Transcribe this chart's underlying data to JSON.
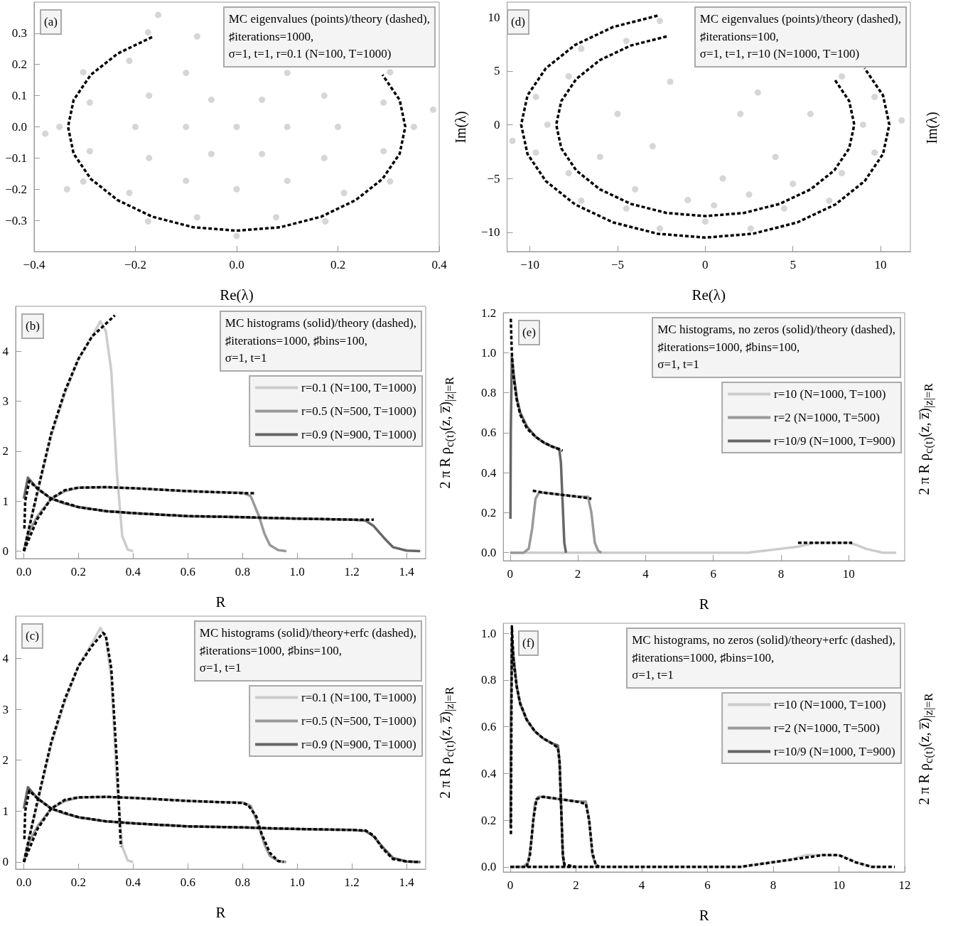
{
  "chart_data": [
    {
      "type": "scatter",
      "xlabel": "Re(λ)",
      "ylabel": "Im(λ)",
      "annotations": [
        "(a)",
        "MC eigenvalues (points)/theory (dashed),",
        "♯iterations=1000,",
        "σ=1, t=1, r=0.1 (N=100, T=1000)"
      ],
      "xlim": [
        -0.4,
        0.4
      ],
      "ylim": [
        -0.4,
        0.4
      ],
      "xticks": [
        {
          "value": -0.4,
          "label": "−0.4"
        },
        {
          "value": -0.2,
          "label": "−0.2"
        },
        {
          "value": 0,
          "label": "0.0"
        },
        0.2,
        0.4
      ],
      "yticks": [
        {
          "value": -0.3,
          "label": "−0.3"
        },
        {
          "value": -0.2,
          "label": "−0.2"
        },
        {
          "value": -0.1,
          "label": "−0.1"
        },
        {
          "value": 0,
          "label": "0.0"
        },
        0.1,
        0.2,
        0.3
      ],
      "series": [
        {
          "color": "#cccccc",
          "marker": "circle",
          "x": [
            0,
            0.1,
            0.05,
            -0.05,
            -0.1,
            -0.05,
            0.05,
            0.2,
            0.173,
            0.1,
            -0.1,
            -0.173,
            -0.2,
            -0.173,
            -0.1,
            0,
            0.1,
            0.173,
            0.29,
            -0.078,
            -0.212,
            -0.29,
            -0.29,
            -0.212,
            -0.078,
            0.078,
            0.212,
            0.29,
            0.35,
            0.303,
            -0.175,
            -0.303,
            -0.35,
            -0.303,
            -0.175,
            0,
            0.175,
            0.303,
            0.388,
            -0.378,
            -0.335,
            -0.155
          ],
          "values": [
            0,
            0,
            0.087,
            0.087,
            0,
            -0.087,
            -0.087,
            0,
            0.1,
            0.173,
            0.173,
            0.1,
            0,
            -0.1,
            -0.173,
            -0.2,
            -0.173,
            -0.1,
            0.078,
            0.29,
            0.212,
            0.078,
            -0.078,
            -0.212,
            -0.29,
            -0.29,
            -0.212,
            -0.078,
            0,
            0.175,
            0.303,
            0.175,
            0,
            -0.175,
            -0.303,
            -0.35,
            -0.303,
            -0.175,
            0.055,
            -0.022,
            -0.2,
            0.359
          ]
        },
        {
          "type": "line",
          "color": "#000000",
          "line_style": "dashed",
          "x": [
            -0.167,
            -0.235,
            -0.288,
            -0.322,
            -0.333,
            -0.322,
            -0.288,
            -0.235,
            -0.167,
            -0.086,
            0,
            0.086,
            0.167,
            0.235,
            0.288,
            0.322,
            0.333,
            0.322,
            0.288
          ],
          "values": [
            0.288,
            0.235,
            0.167,
            0.086,
            0,
            -0.086,
            -0.167,
            -0.235,
            -0.288,
            -0.322,
            -0.333,
            -0.322,
            -0.288,
            -0.235,
            -0.167,
            -0.086,
            0,
            0.086,
            0.167
          ]
        }
      ]
    },
    {
      "type": "scatter",
      "xlabel": "Re(λ)",
      "ylabel": "Im(λ)",
      "annotations": [
        "(d)",
        "MC eigenvalues (points)/theory (dashed),",
        "♯iterations=100,",
        "σ=1, t=1, r=10 (N=1000, T=100)"
      ],
      "xlim": [
        -11.3,
        11.7
      ],
      "ylim": [
        -11.8,
        11.4
      ],
      "xticks": [
        {
          "value": -10,
          "label": "−10"
        },
        {
          "value": -5,
          "label": "−5"
        },
        0,
        5,
        10
      ],
      "yticks": [
        {
          "value": -10,
          "label": "−10"
        },
        {
          "value": -5,
          "label": "−5"
        },
        0,
        5,
        10
      ],
      "series": [
        {
          "color": "#cccccc",
          "marker": "circle",
          "x": [
            9,
            7.79,
            -4.5,
            -7.79,
            -9,
            -7.79,
            -4.5,
            0,
            4.5,
            7.79,
            9.66,
            -2.59,
            -7.07,
            -9.66,
            -9.66,
            -7.07,
            -2.59,
            2.59,
            7.07,
            9.66,
            2,
            -3,
            1,
            -5,
            4,
            -2,
            3,
            -1,
            0.5,
            -4,
            5,
            6,
            -6,
            2.5,
            11.2,
            -11
          ],
          "values": [
            0,
            4.5,
            7.79,
            4.5,
            0,
            -4.5,
            -7.79,
            -9,
            -7.79,
            -4.5,
            2.59,
            9.66,
            7.07,
            2.59,
            -2.59,
            -7.07,
            -9.66,
            -9.66,
            -7.07,
            -2.59,
            1,
            -2,
            -5,
            1,
            -3,
            4,
            3,
            -7,
            -7.5,
            -6,
            -5.5,
            1,
            -3,
            -6.5,
            0.4,
            -1.5
          ]
        },
        {
          "type": "line",
          "color": "#000000",
          "line_style": "dashed",
          "x": [
            -2.72,
            -5.25,
            -7.42,
            -9.09,
            -10.14,
            -10.5,
            -10.14,
            -9.09,
            -7.42,
            -5.25,
            -2.72,
            0,
            2.72,
            5.25,
            7.42,
            9.09,
            10.14,
            10.5,
            10.14,
            9.09
          ],
          "values": [
            10.14,
            9.09,
            7.42,
            5.25,
            2.72,
            0,
            -2.72,
            -5.25,
            -7.42,
            -9.09,
            -10.14,
            -10.5,
            -10.14,
            -9.09,
            -7.42,
            -5.25,
            -2.72,
            0,
            2.72,
            5.25
          ]
        },
        {
          "type": "line",
          "color": "#000000",
          "line_style": "dashed",
          "x": [
            -2.2,
            -4.25,
            -6.01,
            -7.36,
            -8.21,
            -8.5,
            -8.21,
            -7.36,
            -6.01,
            -4.25,
            -2.2,
            0,
            2.2,
            4.25,
            6.01,
            7.36,
            8.21,
            8.5,
            8.21,
            7.36
          ],
          "values": [
            8.21,
            7.36,
            6.01,
            4.25,
            2.2,
            0,
            -2.2,
            -4.25,
            -6.01,
            -7.36,
            -8.21,
            -8.5,
            -8.21,
            -7.36,
            -6.01,
            -4.25,
            -2.2,
            0,
            2.2,
            4.25
          ]
        }
      ]
    },
    {
      "type": "line",
      "xlabel": "R",
      "ylabel": "2 π R ρ$_{c(t)}$(z, z̅)$_{|z|=R}$",
      "annotations": [
        "(b)",
        "MC histograms (solid)/theory (dashed),",
        "♯iterations=1000, ♯bins=100,",
        "σ=1, t=1"
      ],
      "legend": "top right",
      "xlim": [
        -0.03,
        1.47
      ],
      "ylim": [
        -0.15,
        4.9
      ],
      "xticks": [
        {
          "value": 0,
          "label": "0.0"
        },
        0.2,
        0.4,
        0.6,
        0.8,
        {
          "value": 1,
          "label": "1.0"
        },
        1.2,
        1.4
      ],
      "yticks": [
        0,
        1,
        2,
        3,
        4
      ],
      "series": [
        {
          "name": "r=0.1 (N=100, T=1000)",
          "color": "#cccccc",
          "x": [
            0,
            0.02,
            0.05,
            0.08,
            0.1,
            0.15,
            0.2,
            0.25,
            0.28,
            0.3,
            0.32,
            0.34,
            0.36,
            0.38,
            0.4
          ],
          "values": [
            0,
            0.5,
            1.15,
            1.85,
            2.3,
            3.15,
            3.85,
            4.3,
            4.6,
            4.4,
            3.6,
            1.6,
            0.3,
            0.03,
            0
          ]
        },
        {
          "name": "r=0.5 (N=500, T=1000)",
          "color": "#999999",
          "x": [
            0,
            0.02,
            0.05,
            0.1,
            0.15,
            0.2,
            0.3,
            0.4,
            0.5,
            0.6,
            0.7,
            0.8,
            0.83,
            0.86,
            0.88,
            0.9,
            0.93,
            0.96
          ],
          "values": [
            0,
            0.4,
            0.7,
            1.05,
            1.2,
            1.27,
            1.28,
            1.26,
            1.23,
            1.2,
            1.18,
            1.17,
            1.1,
            0.7,
            0.35,
            0.12,
            0.02,
            0
          ]
        },
        {
          "name": "r=0.9 (N=900, T=1000)",
          "color": "#666666",
          "x": [
            0,
            0.015,
            0.05,
            0.1,
            0.15,
            0.2,
            0.3,
            0.4,
            0.5,
            0.6,
            0.7,
            0.8,
            0.9,
            1.0,
            1.1,
            1.2,
            1.25,
            1.28,
            1.32,
            1.35,
            1.4,
            1.45
          ],
          "values": [
            1.05,
            1.47,
            1.25,
            1.05,
            0.95,
            0.88,
            0.8,
            0.76,
            0.73,
            0.7,
            0.69,
            0.68,
            0.66,
            0.65,
            0.64,
            0.63,
            0.61,
            0.5,
            0.25,
            0.08,
            0.01,
            0
          ]
        },
        {
          "color": "#000000",
          "line_style": "dashed",
          "x": [
            0,
            0.05,
            0.1,
            0.15,
            0.2,
            0.25,
            0.3,
            0.333
          ],
          "values": [
            0,
            1.2,
            2.35,
            3.2,
            3.85,
            4.3,
            4.55,
            4.72
          ]
        },
        {
          "color": "#000000",
          "line_style": "dashed",
          "x": [
            0,
            0.05,
            0.1,
            0.15,
            0.2,
            0.3,
            0.4,
            0.5,
            0.6,
            0.7,
            0.8,
            0.845
          ],
          "values": [
            0,
            0.65,
            1.05,
            1.22,
            1.27,
            1.28,
            1.26,
            1.23,
            1.2,
            1.18,
            1.16,
            1.16
          ]
        },
        {
          "color": "#000000",
          "line_style": "dashed",
          "x": [
            0.002,
            0.005,
            0.02,
            0.05,
            0.1,
            0.2,
            0.3,
            0.4,
            0.5,
            0.6,
            0.8,
            1.0,
            1.2,
            1.28
          ],
          "values": [
            0.45,
            1.0,
            1.4,
            1.25,
            1.05,
            0.88,
            0.8,
            0.76,
            0.73,
            0.7,
            0.68,
            0.65,
            0.63,
            0.63
          ]
        }
      ]
    },
    {
      "type": "line",
      "xlabel": "R",
      "ylabel": "2 π R ρ$_{c(t)}$(z, z̅)$_{|z|=R}$",
      "annotations": [
        "(e)",
        "MC histograms, no zeros (solid)/theory (dashed),",
        "♯iterations=1000, ♯bins=100,",
        "σ=1, t=1"
      ],
      "legend": "top right",
      "xlim": [
        -0.2,
        11.65
      ],
      "ylim": [
        -0.04,
        1.2
      ],
      "xticks": [
        0,
        2,
        4,
        6,
        8,
        10
      ],
      "yticks": [
        {
          "value": 0,
          "label": "0.0"
        },
        0.2,
        0.4,
        0.6,
        0.8,
        {
          "value": 1,
          "label": "1.0"
        },
        1.2
      ],
      "series": [
        {
          "name": "r=10 (N=1000, T=100)",
          "color": "#cccccc",
          "x": [
            0,
            2,
            4,
            6,
            7,
            7.5,
            8,
            8.5,
            9,
            9.5,
            10,
            10.2,
            10.5,
            11,
            11.4
          ],
          "values": [
            0,
            0,
            0,
            0,
            0,
            0.01,
            0.02,
            0.03,
            0.05,
            0.05,
            0.05,
            0.04,
            0.02,
            0,
            0
          ]
        },
        {
          "name": "r=2 (N=1000, T=500)",
          "color": "#999999",
          "x": [
            0,
            0.4,
            0.55,
            0.65,
            0.75,
            0.85,
            1.0,
            1.5,
            2.0,
            2.3,
            2.4,
            2.5,
            2.6,
            2.7
          ],
          "values": [
            0,
            0,
            0.02,
            0.12,
            0.27,
            0.3,
            0.3,
            0.29,
            0.28,
            0.28,
            0.2,
            0.05,
            0.01,
            0
          ]
        },
        {
          "name": "r=10/9 (N=1000, T=900)",
          "color": "#666666",
          "x": [
            0.01,
            0.02,
            0.05,
            0.1,
            0.2,
            0.3,
            0.5,
            0.75,
            1.0,
            1.25,
            1.45,
            1.5,
            1.55,
            1.6,
            1.65
          ],
          "values": [
            0.17,
            0.6,
            0.98,
            0.9,
            0.77,
            0.7,
            0.63,
            0.58,
            0.55,
            0.53,
            0.52,
            0.45,
            0.25,
            0.05,
            0
          ]
        },
        {
          "color": "#000000",
          "line_style": "dashed",
          "x": [
            8.5,
            10.1
          ],
          "values": [
            0.05,
            0.05
          ]
        },
        {
          "color": "#000000",
          "line_style": "dashed",
          "x": [
            0.67,
            1,
            1.5,
            2,
            2.4
          ],
          "values": [
            0.31,
            0.3,
            0.29,
            0.28,
            0.27
          ]
        },
        {
          "color": "#000000",
          "line_style": "dashed",
          "x": [
            0.02,
            0.05,
            0.1,
            0.2,
            0.3,
            0.5,
            0.75,
            1.0,
            1.25,
            1.55
          ],
          "values": [
            1.17,
            1.0,
            0.88,
            0.76,
            0.69,
            0.62,
            0.58,
            0.55,
            0.53,
            0.51
          ]
        }
      ]
    },
    {
      "type": "line",
      "xlabel": "R",
      "ylabel": "2 π R ρ$_{c(t)}$(z, z̅)$_{|z|=R}$",
      "annotations": [
        "(c)",
        "MC histograms (solid)/theory+erfc (dashed),",
        "♯iterations=1000, ♯bins=100,",
        "σ=1, t=1"
      ],
      "legend": "top right",
      "xlim": [
        -0.03,
        1.47
      ],
      "ylim": [
        -0.14,
        4.83
      ],
      "xticks": [
        {
          "value": 0,
          "label": "0.0"
        },
        0.2,
        0.4,
        0.6,
        0.8,
        {
          "value": 1,
          "label": "1.0"
        },
        1.2,
        1.4
      ],
      "yticks": [
        0,
        1,
        2,
        3,
        4
      ],
      "series": [
        {
          "name": "r=0.1 (N=100, T=1000)",
          "color": "#cccccc",
          "x": [
            0,
            0.02,
            0.05,
            0.08,
            0.1,
            0.15,
            0.2,
            0.25,
            0.28,
            0.3,
            0.32,
            0.34,
            0.36,
            0.38,
            0.4
          ],
          "values": [
            0,
            0.5,
            1.15,
            1.85,
            2.3,
            3.15,
            3.85,
            4.3,
            4.6,
            4.4,
            3.6,
            1.6,
            0.3,
            0.03,
            0
          ]
        },
        {
          "name": "r=0.5 (N=500, T=1000)",
          "color": "#999999",
          "x": [
            0,
            0.02,
            0.05,
            0.1,
            0.15,
            0.2,
            0.3,
            0.4,
            0.5,
            0.6,
            0.7,
            0.8,
            0.83,
            0.86,
            0.88,
            0.9,
            0.93,
            0.96
          ],
          "values": [
            0,
            0.4,
            0.7,
            1.05,
            1.2,
            1.27,
            1.28,
            1.26,
            1.23,
            1.2,
            1.18,
            1.17,
            1.1,
            0.7,
            0.35,
            0.12,
            0.02,
            0
          ]
        },
        {
          "name": "r=0.9 (N=900, T=1000)",
          "color": "#666666",
          "x": [
            0,
            0.015,
            0.05,
            0.1,
            0.15,
            0.2,
            0.3,
            0.4,
            0.5,
            0.6,
            0.7,
            0.8,
            0.9,
            1.0,
            1.1,
            1.2,
            1.25,
            1.28,
            1.32,
            1.35,
            1.4,
            1.45
          ],
          "values": [
            1.05,
            1.47,
            1.25,
            1.05,
            0.95,
            0.88,
            0.8,
            0.76,
            0.73,
            0.7,
            0.69,
            0.68,
            0.66,
            0.65,
            0.64,
            0.63,
            0.61,
            0.5,
            0.25,
            0.08,
            0.01,
            0
          ]
        },
        {
          "color": "#000000",
          "line_style": "dashed",
          "x": [
            0,
            0.05,
            0.1,
            0.15,
            0.2,
            0.25,
            0.29,
            0.3,
            0.32,
            0.34,
            0.355
          ],
          "values": [
            0,
            1.2,
            2.35,
            3.2,
            3.85,
            4.25,
            4.5,
            4.45,
            3.8,
            2.0,
            0.3
          ]
        },
        {
          "color": "#000000",
          "line_style": "dashed",
          "x": [
            0,
            0.05,
            0.1,
            0.15,
            0.2,
            0.3,
            0.4,
            0.5,
            0.6,
            0.7,
            0.8,
            0.82,
            0.85,
            0.87,
            0.9,
            0.93,
            0.95
          ],
          "values": [
            0,
            0.65,
            1.05,
            1.22,
            1.27,
            1.28,
            1.26,
            1.23,
            1.2,
            1.18,
            1.16,
            1.12,
            0.9,
            0.55,
            0.18,
            0.02,
            0
          ]
        },
        {
          "color": "#000000",
          "line_style": "dashed",
          "x": [
            0.002,
            0.005,
            0.02,
            0.05,
            0.1,
            0.2,
            0.3,
            0.4,
            0.5,
            0.6,
            0.8,
            1.0,
            1.2,
            1.25,
            1.28,
            1.31,
            1.35,
            1.4,
            1.45
          ],
          "values": [
            0.45,
            1.0,
            1.4,
            1.25,
            1.05,
            0.88,
            0.8,
            0.76,
            0.73,
            0.7,
            0.68,
            0.65,
            0.63,
            0.62,
            0.52,
            0.28,
            0.06,
            0.01,
            0
          ]
        }
      ]
    },
    {
      "type": "line",
      "xlabel": "R",
      "ylabel": "2 π R ρ$_{c(t)}$(z, z̅)$_{|z|=R}$",
      "annotations": [
        "(f)",
        "MC histograms, no zeros (solid)/theory+erfc (dashed),",
        "♯iterations=1000, ♯bins=100,",
        "σ=1, t=1"
      ],
      "legend": "top right",
      "xlim": [
        -0.21,
        12
      ],
      "ylim": [
        -0.022,
        1.043
      ],
      "xticks": [
        0,
        2,
        4,
        6,
        8,
        10,
        12
      ],
      "yticks": [
        {
          "value": 0,
          "label": "0.0"
        },
        0.2,
        0.4,
        0.6,
        0.8,
        {
          "value": 1,
          "label": "1.0"
        }
      ],
      "series": [
        {
          "name": "r=10 (N=1000, T=100)",
          "color": "#cccccc",
          "x": [
            0,
            2,
            4,
            6,
            7,
            7.5,
            8,
            8.5,
            9,
            9.5,
            10,
            10.2,
            10.5,
            11,
            11.4
          ],
          "values": [
            0,
            0,
            0,
            0,
            0,
            0.01,
            0.02,
            0.03,
            0.05,
            0.05,
            0.05,
            0.04,
            0.02,
            0,
            0
          ]
        },
        {
          "name": "r=2 (N=1000, T=500)",
          "color": "#999999",
          "x": [
            0,
            0.4,
            0.55,
            0.65,
            0.75,
            0.85,
            1.0,
            1.5,
            2.0,
            2.3,
            2.4,
            2.5,
            2.6,
            2.7
          ],
          "values": [
            0,
            0,
            0.02,
            0.12,
            0.27,
            0.3,
            0.3,
            0.29,
            0.28,
            0.28,
            0.2,
            0.05,
            0.01,
            0
          ]
        },
        {
          "name": "r=10/9 (N=1000, T=900)",
          "color": "#666666",
          "x": [
            0.01,
            0.02,
            0.05,
            0.1,
            0.2,
            0.3,
            0.5,
            0.75,
            1.0,
            1.25,
            1.45,
            1.5,
            1.55,
            1.6,
            1.65
          ],
          "values": [
            0.17,
            0.6,
            0.98,
            0.9,
            0.77,
            0.7,
            0.63,
            0.58,
            0.55,
            0.53,
            0.52,
            0.45,
            0.25,
            0.05,
            0
          ]
        },
        {
          "color": "#000000",
          "line_style": "dashed",
          "x": [
            0,
            2,
            4,
            6,
            7,
            8,
            8.5,
            9,
            9.5,
            10,
            10.5,
            11,
            11.7
          ],
          "values": [
            0,
            0,
            0,
            0,
            0,
            0.02,
            0.03,
            0.04,
            0.05,
            0.05,
            0.02,
            0,
            0
          ]
        },
        {
          "color": "#000000",
          "line_style": "dashed",
          "x": [
            0.5,
            0.6,
            0.7,
            0.8,
            1,
            1.5,
            2,
            2.3,
            2.4,
            2.5,
            2.6,
            2.7
          ],
          "values": [
            0,
            0.05,
            0.2,
            0.29,
            0.3,
            0.29,
            0.28,
            0.27,
            0.2,
            0.06,
            0.01,
            0
          ]
        },
        {
          "color": "#000000",
          "line_style": "dashed",
          "x": [
            0.02,
            0.05,
            0.1,
            0.2,
            0.3,
            0.5,
            0.75,
            1,
            1.25,
            1.45,
            1.5,
            1.55,
            1.6,
            1.65,
            2
          ],
          "values": [
            0.14,
            1.03,
            0.88,
            0.77,
            0.7,
            0.63,
            0.58,
            0.55,
            0.53,
            0.51,
            0.45,
            0.25,
            0.05,
            0.01,
            0
          ]
        }
      ]
    }
  ]
}
